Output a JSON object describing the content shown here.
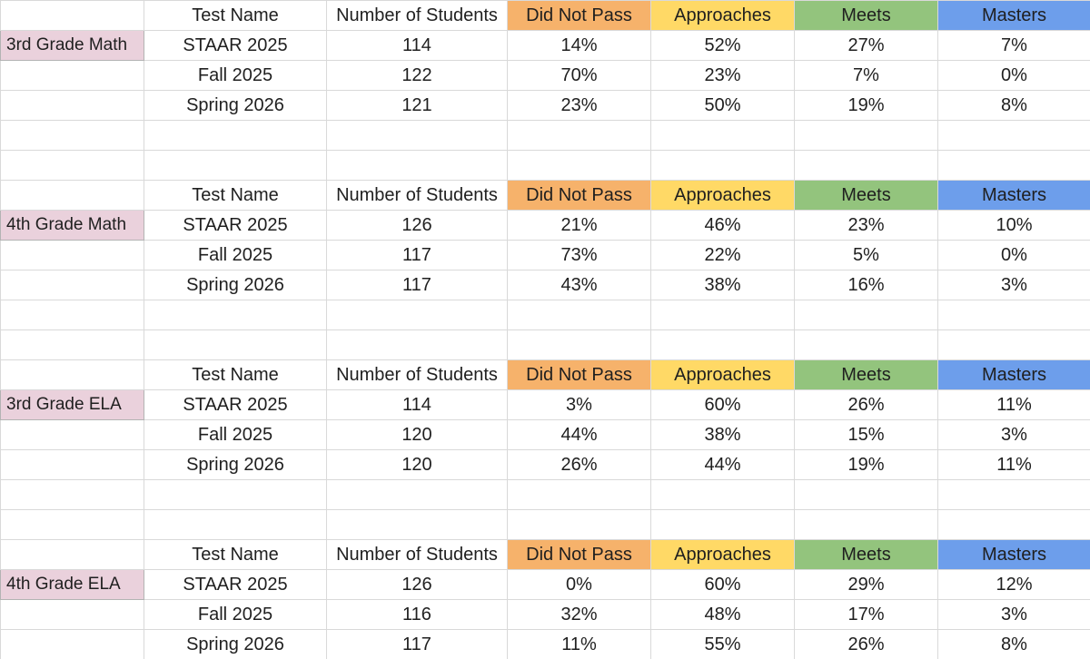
{
  "colors": {
    "did_not_pass": "#f6b26b",
    "approaches": "#ffd966",
    "meets": "#93c47d",
    "masters": "#6d9eeb",
    "grade_label": "#ead1dc",
    "gridline": "#d9d9d9"
  },
  "headers": {
    "test_name": "Test Name",
    "number_of_students": "Number of Students",
    "did_not_pass": "Did Not Pass",
    "approaches": "Approaches",
    "meets": "Meets",
    "masters": "Masters"
  },
  "sections": [
    {
      "label": "3rd Grade Math",
      "rows": [
        {
          "test": "STAAR 2025",
          "students": "114",
          "did_not_pass": "14%",
          "approaches": "52%",
          "meets": "27%",
          "masters": "7%"
        },
        {
          "test": "Fall 2025",
          "students": "122",
          "did_not_pass": "70%",
          "approaches": "23%",
          "meets": "7%",
          "masters": "0%"
        },
        {
          "test": "Spring 2026",
          "students": "121",
          "did_not_pass": "23%",
          "approaches": "50%",
          "meets": "19%",
          "masters": "8%"
        }
      ]
    },
    {
      "label": "4th Grade Math",
      "rows": [
        {
          "test": "STAAR 2025",
          "students": "126",
          "did_not_pass": "21%",
          "approaches": "46%",
          "meets": "23%",
          "masters": "10%"
        },
        {
          "test": "Fall 2025",
          "students": "117",
          "did_not_pass": "73%",
          "approaches": "22%",
          "meets": "5%",
          "masters": "0%"
        },
        {
          "test": "Spring 2026",
          "students": "117",
          "did_not_pass": "43%",
          "approaches": "38%",
          "meets": "16%",
          "masters": "3%"
        }
      ]
    },
    {
      "label": "3rd Grade ELA",
      "rows": [
        {
          "test": "STAAR 2025",
          "students": "114",
          "did_not_pass": "3%",
          "approaches": "60%",
          "meets": "26%",
          "masters": "11%"
        },
        {
          "test": "Fall 2025",
          "students": "120",
          "did_not_pass": "44%",
          "approaches": "38%",
          "meets": "15%",
          "masters": "3%"
        },
        {
          "test": "Spring 2026",
          "students": "120",
          "did_not_pass": "26%",
          "approaches": "44%",
          "meets": "19%",
          "masters": "11%"
        }
      ]
    },
    {
      "label": "4th Grade ELA",
      "rows": [
        {
          "test": "STAAR 2025",
          "students": "126",
          "did_not_pass": "0%",
          "approaches": "60%",
          "meets": "29%",
          "masters": "12%"
        },
        {
          "test": "Fall 2025",
          "students": "116",
          "did_not_pass": "32%",
          "approaches": "48%",
          "meets": "17%",
          "masters": "3%"
        },
        {
          "test": "Spring 2026",
          "students": "117",
          "did_not_pass": "11%",
          "approaches": "55%",
          "meets": "26%",
          "masters": "8%"
        }
      ]
    }
  ]
}
